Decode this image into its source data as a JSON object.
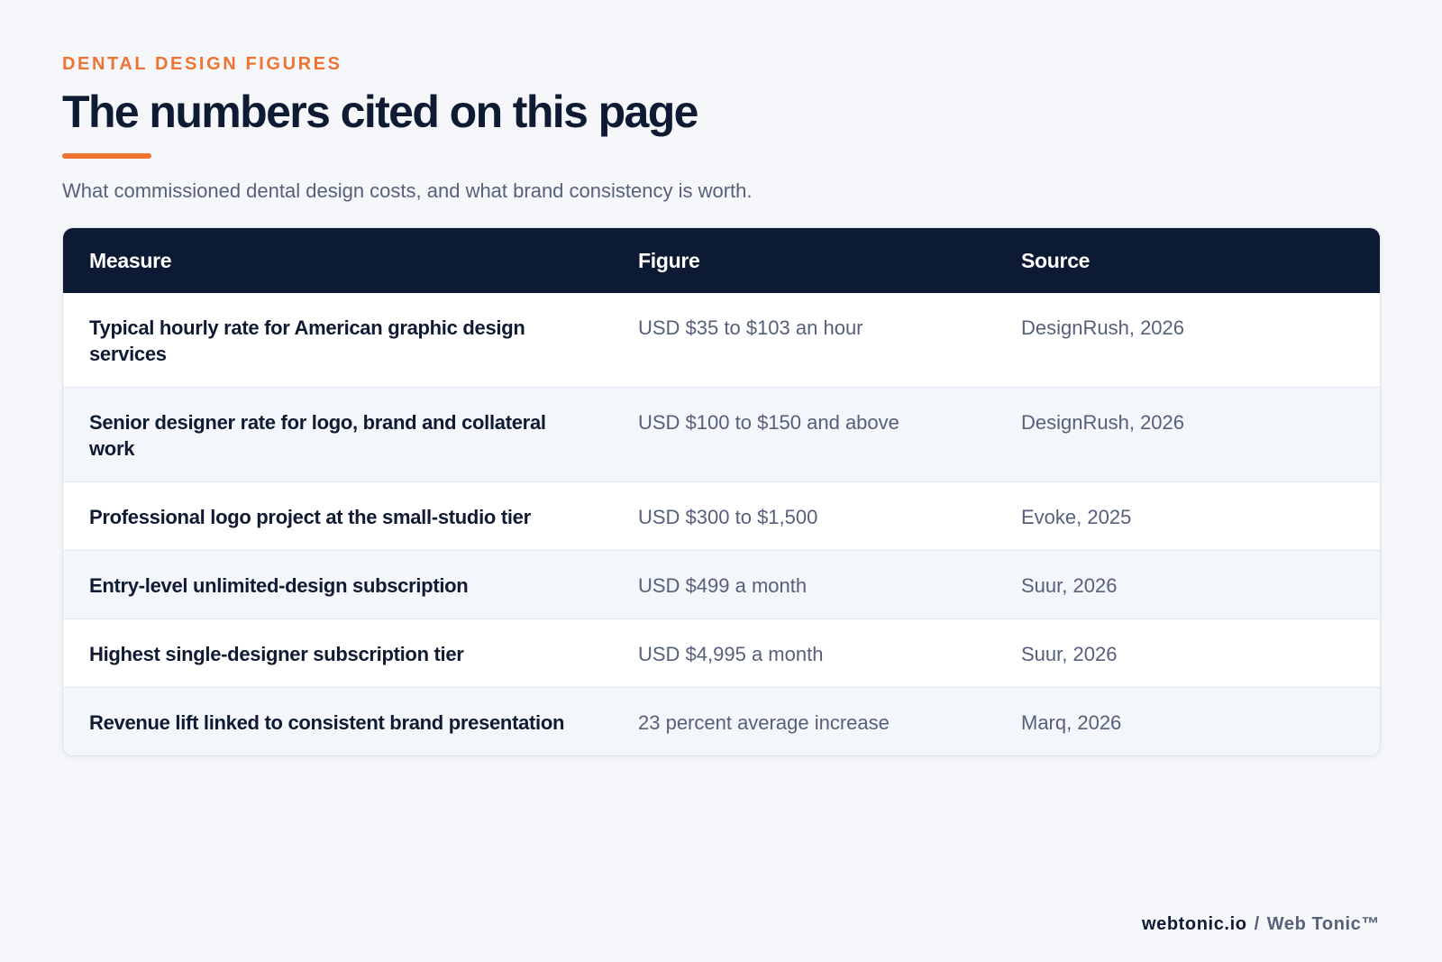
{
  "header": {
    "eyebrow": "DENTAL DESIGN FIGURES",
    "title": "The numbers cited on this page",
    "subtitle": "What commissioned dental design costs, and what brand consistency is worth."
  },
  "table": {
    "columns": [
      "Measure",
      "Figure",
      "Source"
    ],
    "rows": [
      {
        "measure": "Typical hourly rate for American graphic design services",
        "figure": "USD $35 to $103 an hour",
        "source": "DesignRush, 2026"
      },
      {
        "measure": "Senior designer rate for logo, brand and collateral work",
        "figure": "USD $100 to $150 and above",
        "source": "DesignRush, 2026"
      },
      {
        "measure": "Professional logo project at the small-studio tier",
        "figure": "USD $300 to $1,500",
        "source": "Evoke, 2025"
      },
      {
        "measure": "Entry-level unlimited-design subscription",
        "figure": "USD $499 a month",
        "source": "Suur, 2026"
      },
      {
        "measure": "Highest single-designer subscription tier",
        "figure": "USD $4,995 a month",
        "source": "Suur, 2026"
      },
      {
        "measure": "Revenue lift linked to consistent brand presentation",
        "figure": "23 percent average increase",
        "source": "Marq, 2026"
      }
    ]
  },
  "footer": {
    "site": "webtonic.io",
    "separator": "/",
    "brand": "Web Tonic™"
  },
  "colors": {
    "accent": "#ef7332",
    "navy": "#0d1a33",
    "muted_text": "#55617a",
    "background": "#f5f7fa"
  }
}
